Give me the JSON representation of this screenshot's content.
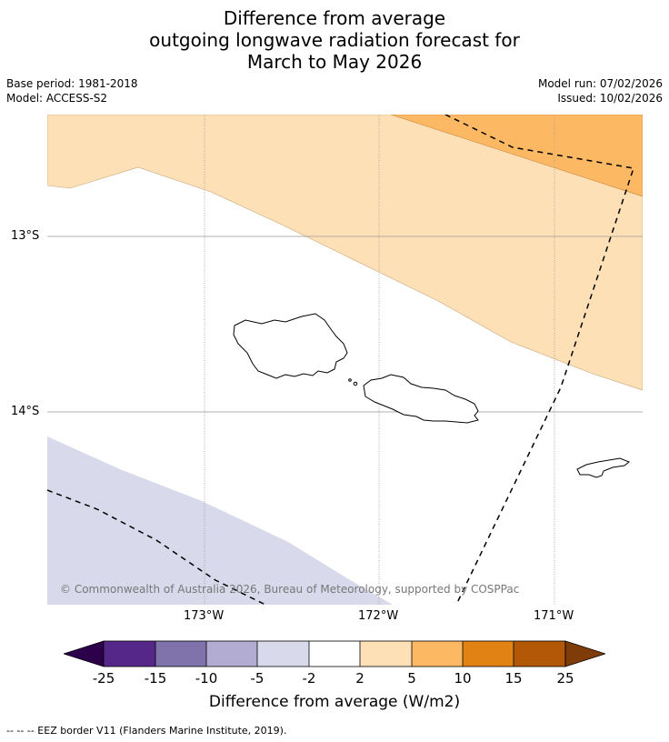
{
  "title": {
    "line1": "Difference from average",
    "line2": "outgoing longwave radiation forecast for",
    "line3": "March to May 2026"
  },
  "meta": {
    "base_period": "Base period: 1981-2018",
    "model": "Model: ACCESS-S2",
    "model_run": "Model run: 07/02/2026",
    "issued": "Issued: 10/02/2026"
  },
  "map": {
    "lat_labels": [
      "13°S",
      "14°S"
    ],
    "lon_labels": [
      "173°W",
      "172°W",
      "171°W"
    ],
    "copyright": "© Commonwealth of Australia 2026, Bureau of Meteorology, supported by COSPPac",
    "colors": {
      "band_2_5": "#fde0b6",
      "band_5_10": "#fdb863",
      "band_m5_m2": "#d8daeb",
      "land_outline": "#000000",
      "gridline": "#999999"
    }
  },
  "colorbar": {
    "tick_labels": [
      "-25",
      "-15",
      "-10",
      "-5",
      "-2",
      "2",
      "5",
      "10",
      "15",
      "25"
    ],
    "colors": [
      "#2d004b",
      "#542788",
      "#8073ac",
      "#b2abd2",
      "#d8daeb",
      "#ffffff",
      "#fde0b6",
      "#fdb863",
      "#e08214",
      "#b35806",
      "#7f3b08"
    ],
    "title": "Difference from average (W/m2)"
  },
  "legend": {
    "eez_note": "--  --  -- EEZ border V11 (Flanders Marine Institute, 2019)."
  }
}
